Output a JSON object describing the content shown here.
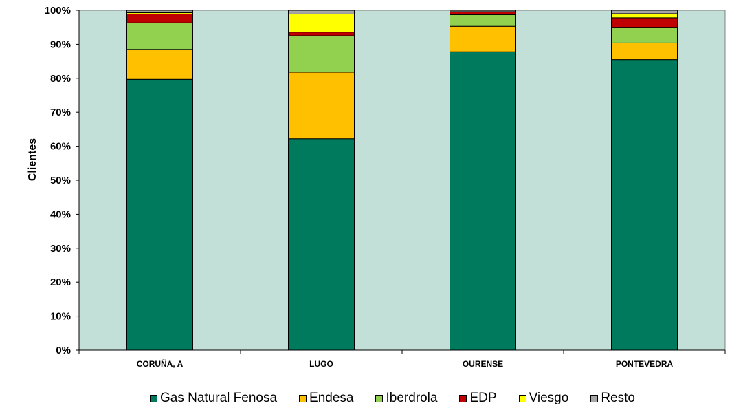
{
  "chart_data": {
    "type": "bar",
    "stacked": true,
    "percent": true,
    "title": "",
    "xlabel": "",
    "ylabel": "Clientes",
    "ylim": [
      0,
      100
    ],
    "yticks": [
      "0%",
      "10%",
      "20%",
      "30%",
      "40%",
      "50%",
      "60%",
      "70%",
      "80%",
      "90%",
      "100%"
    ],
    "categories": [
      "CORUÑA, A",
      "LUGO",
      "OURENSE",
      "PONTEVEDRA"
    ],
    "series": [
      {
        "name": "Gas Natural Fenosa",
        "color": "#007A5C",
        "values": [
          79.7,
          62.2,
          87.8,
          85.5
        ]
      },
      {
        "name": "Endesa",
        "color": "#FFC000",
        "values": [
          8.8,
          19.6,
          7.5,
          4.9
        ]
      },
      {
        "name": "Iberdrola",
        "color": "#92D050",
        "values": [
          7.8,
          10.7,
          3.4,
          4.6
        ]
      },
      {
        "name": "EDP",
        "color": "#C00000",
        "values": [
          2.6,
          1.1,
          0.8,
          2.8
        ]
      },
      {
        "name": "Viesgo",
        "color": "#FFFF00",
        "values": [
          0.4,
          5.3,
          0.1,
          1.2
        ]
      },
      {
        "name": "Resto",
        "color": "#A6A6A6",
        "values": [
          0.7,
          1.1,
          0.4,
          1.0
        ]
      }
    ],
    "plot_background": "#C2DFD8",
    "grid": false,
    "legend_position": "bottom"
  }
}
